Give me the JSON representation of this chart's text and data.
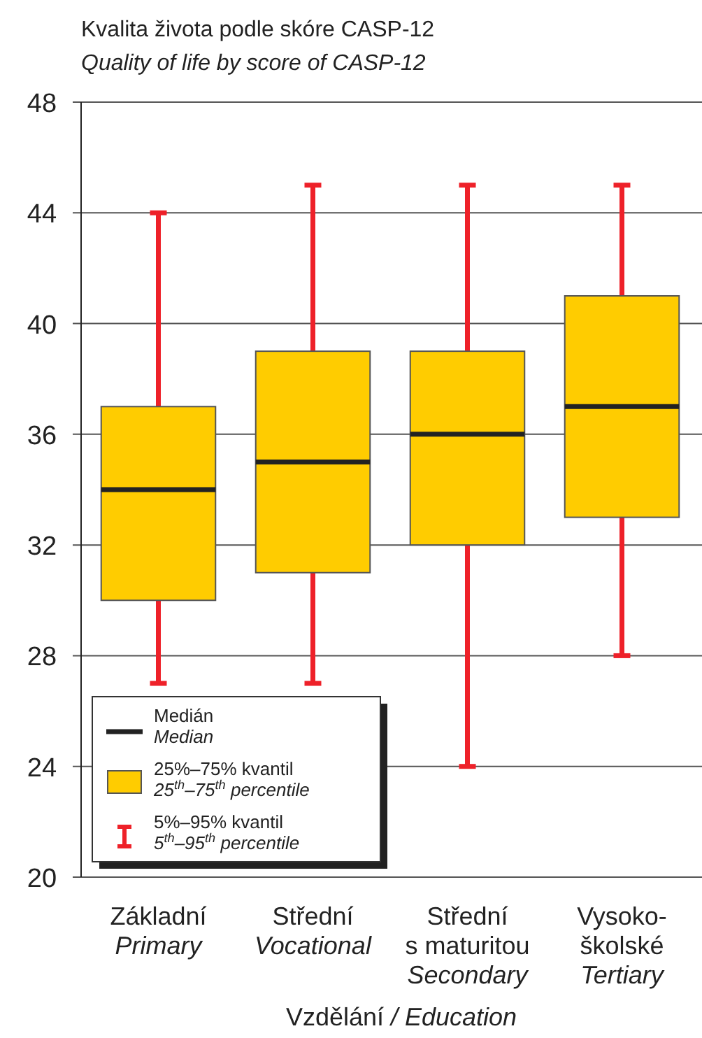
{
  "chart_data": {
    "type": "box",
    "title": "Kvalita života podle skóre CASP-12",
    "subtitle": "Quality of life by score of CASP-12",
    "xlabel": "Vzdělání / Education",
    "categories": [
      "Základní\nPrimary",
      "Střední\nVocational",
      "Střední\ns maturitou\nSecondary",
      "Vysoko-\nškolské\nTertiary"
    ],
    "series": [
      {
        "color": "#ffcc00",
        "boxes": [
          {
            "low": 27,
            "q1": 30,
            "median": 34,
            "q3": 37,
            "high": 44
          },
          {
            "low": 27,
            "q1": 31,
            "median": 35,
            "q3": 39,
            "high": 45
          },
          {
            "low": 24,
            "q1": 32,
            "median": 36,
            "q3": 39,
            "high": 45
          },
          {
            "low": 28,
            "q1": 33,
            "median": 37,
            "q3": 41,
            "high": 45
          }
        ]
      }
    ],
    "ylim": [
      20,
      48
    ],
    "yticks": [
      20,
      24,
      28,
      32,
      36,
      40,
      44,
      48
    ],
    "grid": "y",
    "annotations": [
      "Medián\nMedian",
      "25%–75% kvantil\n25$^{th}$–75$^{th}$ percentile",
      "5%–95% kvantil\n5$^{th}$–95$^{th}$ percentile"
    ]
  }
}
